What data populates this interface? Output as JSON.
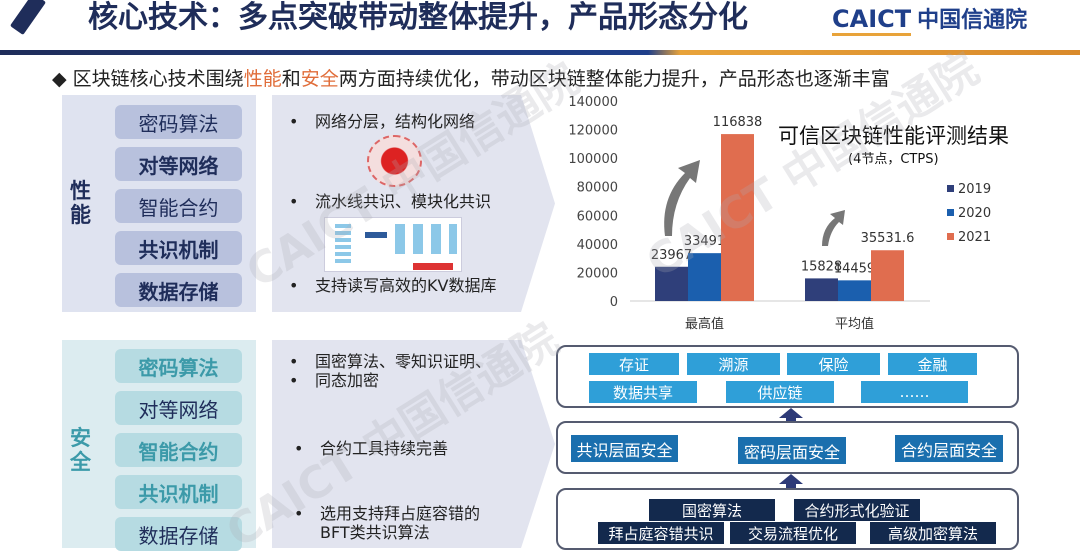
{
  "header": {
    "title": "核心技术：多点突破带动整体提升，产品形态分化",
    "logo_en": "CAICT",
    "logo_cn": "中国信通院"
  },
  "subtitle": {
    "diamond": "◆",
    "pre": "区块链核心技术围绕",
    "hl1": "性能",
    "mid": "和",
    "hl2": "安全",
    "post": "两方面持续优化，带动区块链整体能力提升，产品形态也逐渐丰富"
  },
  "performance": {
    "label": "性能",
    "items": [
      "密码算法",
      "对等网络",
      "智能合约",
      "共识机制",
      "数据存储"
    ],
    "bullets": [
      "网络分层，结构化网络",
      "流水线共识、模块化共识",
      "支持读写高效的KV数据库"
    ]
  },
  "security": {
    "label": "安全",
    "items": [
      "密码算法",
      "对等网络",
      "智能合约",
      "共识机制",
      "数据存储"
    ],
    "bullets": [
      "国密算法、零知识证明、",
      "同态加密",
      "合约工具持续完善",
      "选用支持拜占庭容错的",
      "BFT类共识算法"
    ]
  },
  "layers": {
    "applications": [
      "存证",
      "溯源",
      "保险",
      "金融",
      "数据共享",
      "供应链",
      "……"
    ],
    "security": [
      "共识层面安全",
      "密码层面安全",
      "合约层面安全"
    ],
    "technologies": [
      "国密算法",
      "合约形式化验证",
      "拜占庭容错共识",
      "交易流程优化",
      "高级加密算法"
    ]
  },
  "colors": {
    "navy": "#1f2d5a",
    "accent": "#e06d3a",
    "s2019": "#2f3f7a",
    "s2020": "#1b5fae",
    "s2021": "#e06d4f"
  },
  "chart_data": {
    "type": "bar",
    "title": "可信区块链性能评测结果",
    "subtitle": "(4节点，CTPS)",
    "categories": [
      "最高值",
      "平均值"
    ],
    "series": [
      {
        "name": "2019",
        "values": [
          23967,
          15828
        ],
        "labels": [
          "23967",
          "15828"
        ]
      },
      {
        "name": "2020",
        "values": [
          33491,
          14459
        ],
        "labels": [
          "33491",
          "14459"
        ]
      },
      {
        "name": "2021",
        "values": [
          116838,
          35531.6
        ],
        "labels": [
          "116838",
          "35531.6"
        ]
      }
    ],
    "ylim": [
      0,
      140000
    ],
    "yticks": [
      "0",
      "20000",
      "40000",
      "60000",
      "80000",
      "100000",
      "120000",
      "140000"
    ],
    "legend": "right",
    "grid": false
  }
}
